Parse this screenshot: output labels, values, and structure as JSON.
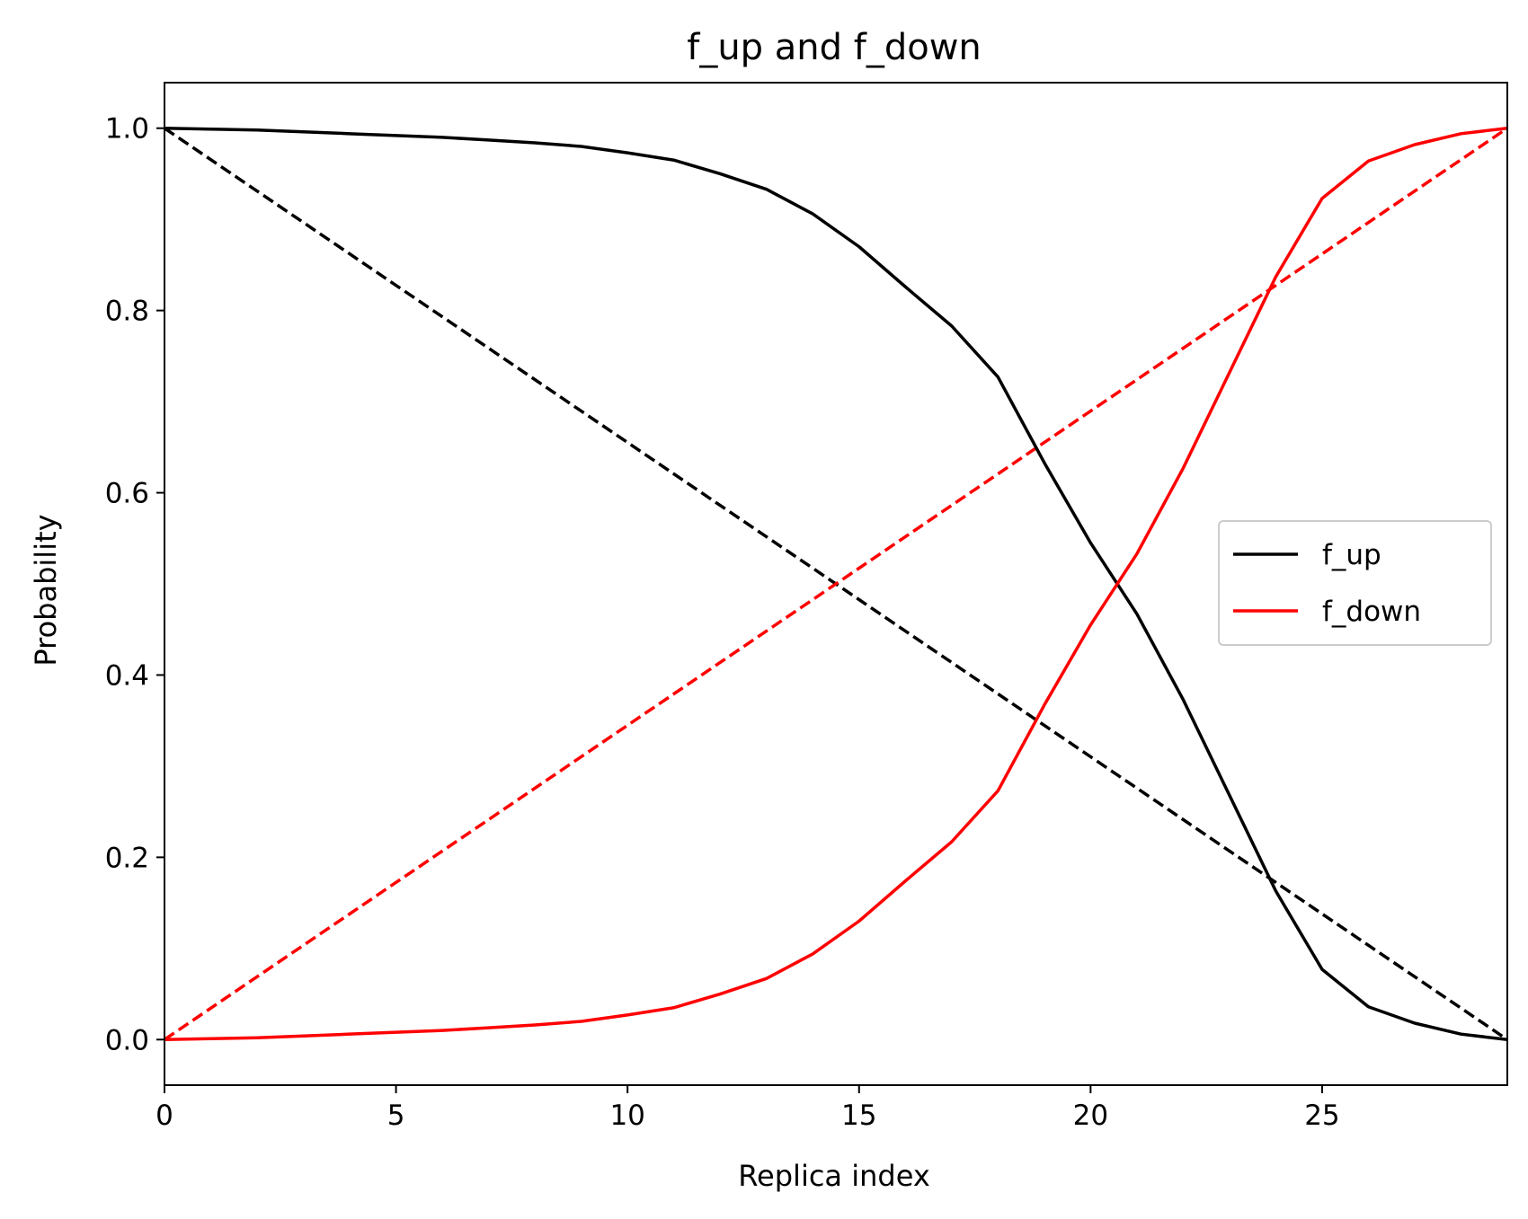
{
  "chart_data": {
    "type": "line",
    "title": "f_up and f_down",
    "xlabel": "Replica index",
    "ylabel": "Probability",
    "xlim": [
      0,
      29
    ],
    "ylim": [
      -0.05,
      1.05
    ],
    "xticks": [
      0,
      5,
      10,
      15,
      20,
      25
    ],
    "xtick_labels": [
      "0",
      "5",
      "10",
      "15",
      "20",
      "25"
    ],
    "yticks": [
      0.0,
      0.2,
      0.4,
      0.6,
      0.8,
      1.0
    ],
    "ytick_labels": [
      "0.0",
      "0.2",
      "0.4",
      "0.6",
      "0.8",
      "1.0"
    ],
    "grid": false,
    "legend_position": "center-right",
    "x": [
      0,
      1,
      2,
      3,
      4,
      5,
      6,
      7,
      8,
      9,
      10,
      11,
      12,
      13,
      14,
      15,
      16,
      17,
      18,
      19,
      20,
      21,
      22,
      23,
      24,
      25,
      26,
      27,
      28,
      29
    ],
    "series": [
      {
        "name": "f_up",
        "color": "#000000",
        "style": "solid",
        "values": [
          1.0,
          0.999,
          0.998,
          0.996,
          0.994,
          0.992,
          0.99,
          0.987,
          0.984,
          0.98,
          0.973,
          0.965,
          0.95,
          0.933,
          0.906,
          0.87,
          0.826,
          0.783,
          0.727,
          0.633,
          0.545,
          0.467,
          0.373,
          0.268,
          0.163,
          0.077,
          0.036,
          0.018,
          0.006,
          0.0
        ]
      },
      {
        "name": "f_down",
        "color": "#ff0000",
        "style": "solid",
        "values": [
          0.0,
          0.001,
          0.002,
          0.004,
          0.006,
          0.008,
          0.01,
          0.013,
          0.016,
          0.02,
          0.027,
          0.035,
          0.05,
          0.067,
          0.094,
          0.13,
          0.174,
          0.217,
          0.273,
          0.367,
          0.455,
          0.533,
          0.627,
          0.732,
          0.837,
          0.923,
          0.964,
          0.982,
          0.994,
          1.0
        ]
      }
    ],
    "reference_lines": [
      {
        "color": "#000000",
        "style": "dashed",
        "x": [
          0,
          29
        ],
        "y": [
          1.0,
          0.0
        ]
      },
      {
        "color": "#ff0000",
        "style": "dashed",
        "x": [
          0,
          29
        ],
        "y": [
          0.0,
          1.0
        ]
      }
    ]
  }
}
